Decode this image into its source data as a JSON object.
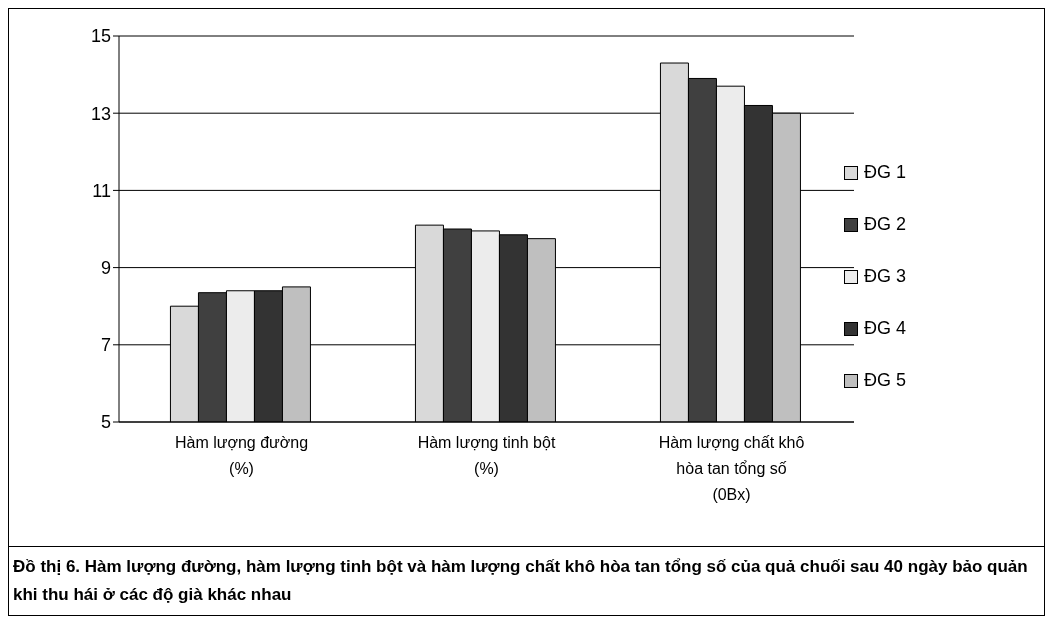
{
  "chart_data": {
    "type": "bar",
    "categories": [
      "Hàm lượng đường\n(%)",
      "Hàm lượng tinh bột\n(%)",
      "Hàm lượng chất khô\nhòa tan tổng số\n(0Bx)"
    ],
    "series": [
      {
        "name": "ĐG 1",
        "color": "#d9d9d9",
        "values": [
          8.0,
          10.1,
          14.3
        ]
      },
      {
        "name": "ĐG 2",
        "color": "#404040",
        "values": [
          8.35,
          10.0,
          13.9
        ]
      },
      {
        "name": "ĐG 3",
        "color": "#ececec",
        "values": [
          8.4,
          9.95,
          13.7
        ]
      },
      {
        "name": "ĐG 4",
        "color": "#333333",
        "values": [
          8.4,
          9.85,
          13.2
        ]
      },
      {
        "name": "ĐG 5",
        "color": "#bfbfbf",
        "values": [
          8.5,
          9.75,
          13.0
        ]
      }
    ],
    "ylim": [
      5,
      15
    ],
    "yticks": [
      5,
      7,
      9,
      11,
      13,
      15
    ],
    "grid": "y",
    "legend": "right",
    "annotations": [
      "Đồ thị 6. Hàm lượng đường, hàm lượng tinh bột và hàm lượng chất khô hòa tan tổng số của quả chuối sau 40 ngày bảo quản khi thu hái ở các độ già khác nhau"
    ]
  }
}
